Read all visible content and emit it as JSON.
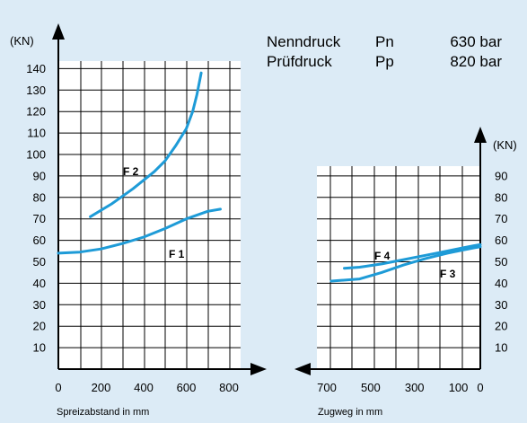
{
  "header": {
    "rows": [
      {
        "label": "Nenndruck",
        "symbol": "Pn",
        "value": "630 bar"
      },
      {
        "label": "Prüfdruck",
        "symbol": "Pp",
        "value": "820 bar"
      }
    ]
  },
  "colors": {
    "background": "#dcebf6",
    "plot": "#ffffff",
    "curve": "#1e9bd7",
    "axis": "#000000"
  },
  "chart_data": [
    {
      "type": "line",
      "ylabel": "(KN)",
      "xlabel": "Spreizabstand in mm",
      "xlim": [
        0,
        800
      ],
      "ylim": [
        0,
        140
      ],
      "xticks": [
        "0",
        "200",
        "400",
        "600",
        "800"
      ],
      "yticks": [
        "10",
        "20",
        "30",
        "40",
        "50",
        "60",
        "70",
        "80",
        "90",
        "100",
        "110",
        "120",
        "130",
        "140"
      ],
      "grid": true,
      "series": [
        {
          "name": "F 2",
          "x": [
            150,
            250,
            350,
            450,
            500,
            550,
            600,
            630,
            650,
            670
          ],
          "y": [
            71,
            77,
            84,
            92,
            97,
            104,
            112,
            120,
            128,
            138
          ]
        },
        {
          "name": "F 1",
          "x": [
            0,
            100,
            200,
            300,
            400,
            500,
            600,
            700,
            760
          ],
          "y": [
            54,
            54.5,
            56,
            58.5,
            61.5,
            65.5,
            70,
            73.5,
            74.5
          ]
        }
      ]
    },
    {
      "type": "line",
      "ylabel": "(KN)",
      "xlabel": "Zugweg in mm",
      "xlim": [
        700,
        0
      ],
      "ylim": [
        0,
        90
      ],
      "xticks": [
        "700",
        "500",
        "300",
        "100",
        "0"
      ],
      "yticks": [
        "10",
        "20",
        "30",
        "40",
        "50",
        "60",
        "70",
        "80",
        "90"
      ],
      "grid": true,
      "series": [
        {
          "name": "F 4",
          "x": [
            620,
            550,
            450,
            350,
            250,
            150,
            80,
            30,
            0
          ],
          "y": [
            47,
            47.5,
            49,
            51,
            53,
            55,
            56.5,
            57.5,
            58
          ]
        },
        {
          "name": "F 3",
          "x": [
            680,
            550,
            450,
            350,
            250,
            150,
            80,
            30,
            0
          ],
          "y": [
            41,
            42,
            45,
            48.5,
            51.5,
            54,
            55.5,
            56.5,
            57
          ]
        }
      ]
    }
  ]
}
